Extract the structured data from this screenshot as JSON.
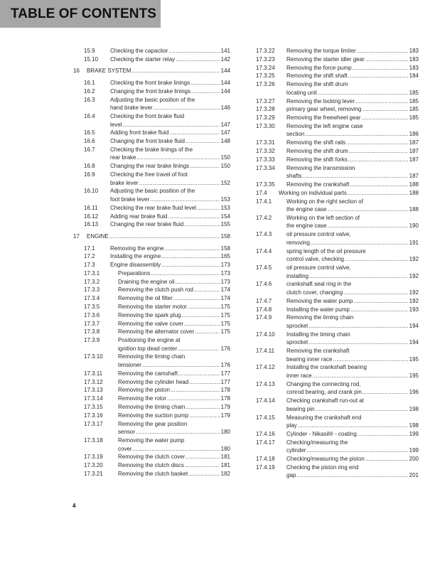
{
  "header": {
    "title": "TABLE OF CONTENTS",
    "background": "#a6a6a6"
  },
  "page_number": "4",
  "columns": [
    {
      "entries": [
        {
          "level": 2,
          "num": "15.9",
          "lines": [
            "Checking the capacitor"
          ],
          "page": "141"
        },
        {
          "level": 2,
          "num": "15.10",
          "lines": [
            "Checking the starter relay"
          ],
          "page": "142"
        },
        {
          "level": 1,
          "num": "16",
          "lines": [
            "BRAKE SYSTEM"
          ],
          "page": "144"
        },
        {
          "level": 2,
          "num": "16.1",
          "lines": [
            "Checking the front brake linings"
          ],
          "page": "144"
        },
        {
          "level": 2,
          "num": "16.2",
          "lines": [
            "Changing the front brake linings"
          ],
          "page": "144"
        },
        {
          "level": 2,
          "num": "16.3",
          "lines": [
            "Adjusting the basic position of the",
            "hand brake lever"
          ],
          "page": "146"
        },
        {
          "level": 2,
          "num": "16.4",
          "lines": [
            "Checking the front brake fluid",
            "level"
          ],
          "page": "147"
        },
        {
          "level": 2,
          "num": "16.5",
          "lines": [
            "Adding front brake fluid"
          ],
          "page": "147"
        },
        {
          "level": 2,
          "num": "16.6",
          "lines": [
            "Changing the front brake fluid"
          ],
          "page": "148"
        },
        {
          "level": 2,
          "num": "16.7",
          "lines": [
            "Checking the brake linings of the",
            "rear brake"
          ],
          "page": "150"
        },
        {
          "level": 2,
          "num": "16.8",
          "lines": [
            "Changing the rear brake linings"
          ],
          "page": "150"
        },
        {
          "level": 2,
          "num": "16.9",
          "lines": [
            "Checking the free travel of foot",
            "brake lever"
          ],
          "page": "152"
        },
        {
          "level": 2,
          "num": "16.10",
          "lines": [
            "Adjusting the basic position of the",
            "foot brake lever"
          ],
          "page": "153"
        },
        {
          "level": 2,
          "num": "16.11",
          "lines": [
            "Checking the rear brake fluid level"
          ],
          "page": "153"
        },
        {
          "level": 2,
          "num": "16.12",
          "lines": [
            "Adding rear brake fluid"
          ],
          "page": "154"
        },
        {
          "level": 2,
          "num": "16.13",
          "lines": [
            "Changing the rear brake fluid"
          ],
          "page": "155"
        },
        {
          "level": 1,
          "num": "17",
          "lines": [
            "ENGINE"
          ],
          "page": "158"
        },
        {
          "level": 2,
          "num": "17.1",
          "lines": [
            "Removing the engine"
          ],
          "page": "158"
        },
        {
          "level": 2,
          "num": "17.2",
          "lines": [
            "Installing the engine"
          ],
          "page": "165"
        },
        {
          "level": 2,
          "num": "17.3",
          "lines": [
            "Engine disassembly"
          ],
          "page": "173"
        },
        {
          "level": 3,
          "num": "17.3.1",
          "lines": [
            "Preparations"
          ],
          "page": "173"
        },
        {
          "level": 3,
          "num": "17.3.2",
          "lines": [
            "Draining the engine oil"
          ],
          "page": "173"
        },
        {
          "level": 3,
          "num": "17.3.3",
          "lines": [
            "Removing the clutch push rod"
          ],
          "page": "174"
        },
        {
          "level": 3,
          "num": "17.3.4",
          "lines": [
            "Removing the oil filter"
          ],
          "page": "174"
        },
        {
          "level": 3,
          "num": "17.3.5",
          "lines": [
            "Removing the starter motor"
          ],
          "page": "175"
        },
        {
          "level": 3,
          "num": "17.3.6",
          "lines": [
            "Removing the spark plug"
          ],
          "page": "175"
        },
        {
          "level": 3,
          "num": "17.3.7",
          "lines": [
            "Removing the valve cover"
          ],
          "page": "175"
        },
        {
          "level": 3,
          "num": "17.3.8",
          "lines": [
            "Removing the alternator cover"
          ],
          "page": "175"
        },
        {
          "level": 3,
          "num": "17.3.9",
          "lines": [
            "Positioning the engine at",
            "ignition top dead center"
          ],
          "page": "176"
        },
        {
          "level": 3,
          "num": "17.3.10",
          "lines": [
            "Removing the timing chain",
            "tensioner"
          ],
          "page": "176"
        },
        {
          "level": 3,
          "num": "17.3.11",
          "lines": [
            "Removing the camshaft"
          ],
          "page": "177"
        },
        {
          "level": 3,
          "num": "17.3.12",
          "lines": [
            "Removing the cylinder head"
          ],
          "page": "177"
        },
        {
          "level": 3,
          "num": "17.3.13",
          "lines": [
            "Removing the piston"
          ],
          "page": "178"
        },
        {
          "level": 3,
          "num": "17.3.14",
          "lines": [
            "Removing the rotor"
          ],
          "page": "178"
        },
        {
          "level": 3,
          "num": "17.3.15",
          "lines": [
            "Removing the timing chain"
          ],
          "page": "179"
        },
        {
          "level": 3,
          "num": "17.3.16",
          "lines": [
            "Removing the suction pump"
          ],
          "page": "179"
        },
        {
          "level": 3,
          "num": "17.3.17",
          "lines": [
            "Removing the gear position",
            "sensor"
          ],
          "page": "180"
        },
        {
          "level": 3,
          "num": "17.3.18",
          "lines": [
            "Removing the water pump",
            "cover"
          ],
          "page": "180"
        },
        {
          "level": 3,
          "num": "17.3.19",
          "lines": [
            "Removing the clutch cover"
          ],
          "page": "181"
        },
        {
          "level": 3,
          "num": "17.3.20",
          "lines": [
            "Removing the clutch discs"
          ],
          "page": "181"
        },
        {
          "level": 3,
          "num": "17.3.21",
          "lines": [
            "Removing the clutch basket"
          ],
          "page": "182"
        }
      ]
    },
    {
      "entries": [
        {
          "level": 3,
          "num": "17.3.22",
          "lines": [
            "Removing the torque limiter"
          ],
          "page": "183"
        },
        {
          "level": 3,
          "num": "17.3.23",
          "lines": [
            "Removing the starter idler gear"
          ],
          "page": "183"
        },
        {
          "level": 3,
          "num": "17.3.24",
          "lines": [
            "Removing the force pump"
          ],
          "page": "183"
        },
        {
          "level": 3,
          "num": "17.3.25",
          "lines": [
            "Removing the shift shaft"
          ],
          "page": "184"
        },
        {
          "level": 3,
          "num": "17.3.26",
          "lines": [
            "Removing the shift drum",
            "locating unit"
          ],
          "page": "185"
        },
        {
          "level": 3,
          "num": "17.3.27",
          "lines": [
            "Removing the locking lever"
          ],
          "page": "185"
        },
        {
          "level": 3,
          "num": "17.3.28",
          "lines": [
            "primary gear wheel, removing"
          ],
          "page": "185"
        },
        {
          "level": 3,
          "num": "17.3.29",
          "lines": [
            "Removing the freewheel gear"
          ],
          "page": "185"
        },
        {
          "level": 3,
          "num": "17.3.30",
          "lines": [
            "Removing the left engine case",
            "section"
          ],
          "page": "186"
        },
        {
          "level": 3,
          "num": "17.3.31",
          "lines": [
            "Removing the shift rails"
          ],
          "page": "187"
        },
        {
          "level": 3,
          "num": "17.3.32",
          "lines": [
            "Removing the shift drum"
          ],
          "page": "187"
        },
        {
          "level": 3,
          "num": "17.3.33",
          "lines": [
            "Removing the shift forks"
          ],
          "page": "187"
        },
        {
          "level": 3,
          "num": "17.3.34",
          "lines": [
            "Removing the transmission",
            "shafts"
          ],
          "page": "187"
        },
        {
          "level": 3,
          "num": "17.3.35",
          "lines": [
            "Removing the crankshaft"
          ],
          "page": "188"
        },
        {
          "level": 2,
          "num": "17.4",
          "lines": [
            "Working on individual parts"
          ],
          "page": "188"
        },
        {
          "level": 3,
          "num": "17.4.1",
          "lines": [
            "Working on the right section of",
            "the engine case"
          ],
          "page": "188"
        },
        {
          "level": 3,
          "num": "17.4.2",
          "lines": [
            "Working on the left section of",
            "the engine case"
          ],
          "page": "190"
        },
        {
          "level": 3,
          "num": "17.4.3",
          "lines": [
            "oil pressure control valve,",
            "removing"
          ],
          "page": "191"
        },
        {
          "level": 3,
          "num": "17.4.4",
          "lines": [
            "spring length of the oil pressure",
            "control valve, checking"
          ],
          "page": "192"
        },
        {
          "level": 3,
          "num": "17.4.5",
          "lines": [
            "oil pressure control valve,",
            "installing"
          ],
          "page": "192"
        },
        {
          "level": 3,
          "num": "17.4.6",
          "lines": [
            "crankshaft seal ring in the",
            "clutch cover, changing"
          ],
          "page": "192"
        },
        {
          "level": 3,
          "num": "17.4.7",
          "lines": [
            "Removing the water pump"
          ],
          "page": "192"
        },
        {
          "level": 3,
          "num": "17.4.8",
          "lines": [
            "Installing the water pump"
          ],
          "page": "193"
        },
        {
          "level": 3,
          "num": "17.4.9",
          "lines": [
            "Removing the timing chain",
            "sprocket"
          ],
          "page": "194"
        },
        {
          "level": 3,
          "num": "17.4.10",
          "lines": [
            "Installing the timing chain",
            "sprocket"
          ],
          "page": "194"
        },
        {
          "level": 3,
          "num": "17.4.11",
          "lines": [
            "Removing the crankshaft",
            "bearing inner race"
          ],
          "page": "195"
        },
        {
          "level": 3,
          "num": "17.4.12",
          "lines": [
            "Installing the crankshaft bearing",
            "inner race"
          ],
          "page": "195"
        },
        {
          "level": 3,
          "num": "17.4.13",
          "lines": [
            "Changing the connecting rod,",
            "conrod bearing, and crank pin"
          ],
          "page": "196"
        },
        {
          "level": 3,
          "num": "17.4.14",
          "lines": [
            "Checking crankshaft run-out at",
            "bearing pin"
          ],
          "page": "198"
        },
        {
          "level": 3,
          "num": "17.4.15",
          "lines": [
            "Measuring the crankshaft end",
            "play"
          ],
          "page": "198"
        },
        {
          "level": 3,
          "num": "17.4.16",
          "lines": [
            "Cylinder - Nikasil® - coating"
          ],
          "page": "199"
        },
        {
          "level": 3,
          "num": "17.4.17",
          "lines": [
            "Checking/measuring the",
            "cylinder"
          ],
          "page": "199"
        },
        {
          "level": 3,
          "num": "17.4.18",
          "lines": [
            "Checking/measuring the piston"
          ],
          "page": "200"
        },
        {
          "level": 3,
          "num": "17.4.19",
          "lines": [
            "Checking the piston ring end",
            "gap"
          ],
          "page": "201"
        }
      ]
    }
  ]
}
